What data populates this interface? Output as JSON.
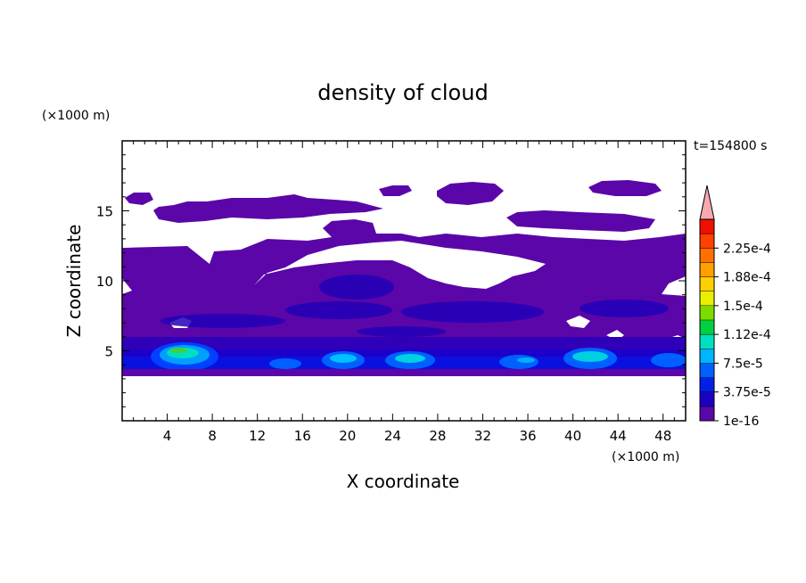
{
  "chart_data": {
    "type": "heatmap",
    "title": "density of cloud",
    "xlabel": "X coordinate",
    "ylabel": "Z coordinate",
    "x_unit": "(×1000 m)",
    "y_unit": "(×1000 m)",
    "time_label": "t=154800 s",
    "xlim": [
      0,
      50
    ],
    "ylim": [
      0,
      20
    ],
    "x_ticks": [
      "4",
      "8",
      "12",
      "16",
      "20",
      "24",
      "28",
      "32",
      "36",
      "40",
      "44",
      "48"
    ],
    "y_ticks": [
      "5",
      "10",
      "15"
    ],
    "colorbar": {
      "labels": [
        "1e-16",
        "3.75e-5",
        "7.5e-5",
        "1.12e-4",
        "1.5e-4",
        "1.88e-4",
        "2.25e-4"
      ],
      "colors": [
        "#5a06a8",
        "#1c00c0",
        "#0020e8",
        "#0060ff",
        "#00b4ff",
        "#00e0c0",
        "#00d040",
        "#7cdc00",
        "#e8f000",
        "#ffd000",
        "#ffa000",
        "#ff7000",
        "#ff4000",
        "#f01000"
      ],
      "extend_color": "#f8a8b0"
    },
    "cloud_layer": {
      "base_z": 3.5,
      "top_z": 12.5,
      "upper_layer_z": [
        13,
        17
      ]
    },
    "dense_cores": [
      {
        "x": 6,
        "z": 4.8,
        "level": "1.5e-4"
      },
      {
        "x": 19,
        "z": 4.4,
        "level": "1.12e-4"
      },
      {
        "x": 25,
        "z": 4.4,
        "level": "1.12e-4"
      },
      {
        "x": 41,
        "z": 4.5,
        "level": "1.12e-4"
      },
      {
        "x": 13.5,
        "z": 4.0,
        "level": "7.5e-5"
      },
      {
        "x": 35,
        "z": 4.2,
        "level": "7.5e-5"
      },
      {
        "x": 47.5,
        "z": 4.2,
        "level": "7.5e-5"
      }
    ]
  }
}
